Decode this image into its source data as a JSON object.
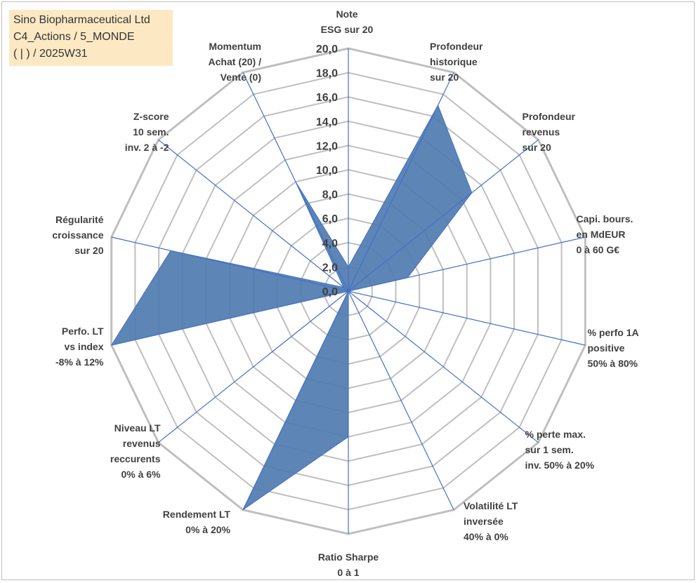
{
  "title_box": {
    "line1": "Sino Biopharmaceutical Ltd",
    "line2": "C4_Actions / 5_MONDE",
    "line3": "( | ) / 2025W31"
  },
  "colors": {
    "fill": "#4f7bb0",
    "axis": "#4472c4",
    "grid": "#bfbfbf",
    "title_bg": "#fce9c4"
  },
  "chart_data": {
    "type": "radar",
    "title": "",
    "categories": [
      "Note\nESG sur 20",
      "Profondeur\nhistorique\nsur 20",
      "Profondeur\nrevenus\nsur 20",
      "Capi. bours.\nen MdEUR\n0 à 60 G€",
      "% perfo 1A\npositive\n50% à 80%",
      "% perte max.\nsur 1 sem.\ninv. 50% à 20%",
      "Volatilité LT\ninversée\n40% à 0%",
      "Ratio Sharpe\n0 à 1",
      "Rendement LT\n0% à 20%",
      "Niveau LT\nrevenus\nreccurents\n0% à 6%",
      "Perfo. LT\nvs index\n-8% à 12%",
      "Régularité\ncroissance\nsur 20",
      "Z-score\n10 sem.\ninv. 2 à -2",
      "Momentum\nAchat (20) /\nVente (0)"
    ],
    "values": [
      2.0,
      17.0,
      13.0,
      5.0,
      0.0,
      0.0,
      0.0,
      12.0,
      20.0,
      0.0,
      20.0,
      15.0,
      0.5,
      10.0
    ],
    "r_ticks": [
      "0,0",
      "2,0",
      "4,0",
      "6,0",
      "8,0",
      "10,0",
      "12,0",
      "14,0",
      "16,0",
      "18,0",
      "20,0"
    ],
    "rlim": [
      0,
      20
    ],
    "grid": true,
    "legend": "none"
  }
}
